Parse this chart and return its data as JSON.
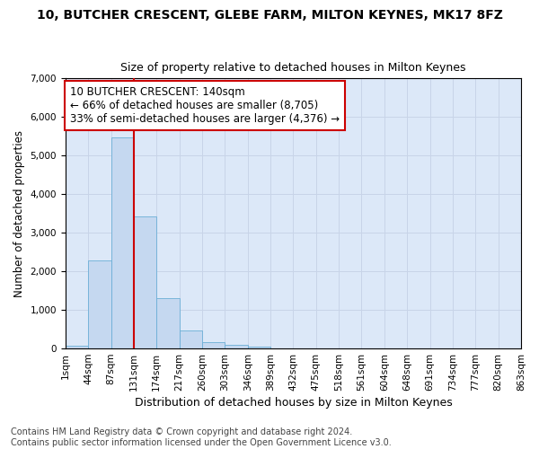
{
  "title": "10, BUTCHER CRESCENT, GLEBE FARM, MILTON KEYNES, MK17 8FZ",
  "subtitle": "Size of property relative to detached houses in Milton Keynes",
  "xlabel": "Distribution of detached houses by size in Milton Keynes",
  "ylabel": "Number of detached properties",
  "bar_values": [
    80,
    2280,
    5480,
    3430,
    1310,
    470,
    155,
    85,
    55,
    0,
    0,
    0,
    0,
    0,
    0,
    0,
    0,
    0,
    0,
    0
  ],
  "bar_labels": [
    "1sqm",
    "44sqm",
    "87sqm",
    "131sqm",
    "174sqm",
    "217sqm",
    "260sqm",
    "303sqm",
    "346sqm",
    "389sqm",
    "432sqm",
    "475sqm",
    "518sqm",
    "561sqm",
    "604sqm",
    "648sqm",
    "691sqm",
    "734sqm",
    "777sqm",
    "820sqm",
    "863sqm"
  ],
  "bar_color": "#c5d8f0",
  "bar_edge_color": "#6baed6",
  "vline_color": "#cc0000",
  "annotation_text": "10 BUTCHER CRESCENT: 140sqm\n← 66% of detached houses are smaller (8,705)\n33% of semi-detached houses are larger (4,376) →",
  "annotation_box_color": "#ffffff",
  "annotation_box_edge_color": "#cc0000",
  "ylim": [
    0,
    7000
  ],
  "yticks": [
    0,
    1000,
    2000,
    3000,
    4000,
    5000,
    6000,
    7000
  ],
  "grid_color": "#c8d4e8",
  "background_color": "#dce8f8",
  "footer_text": "Contains HM Land Registry data © Crown copyright and database right 2024.\nContains public sector information licensed under the Open Government Licence v3.0.",
  "title_fontsize": 10,
  "subtitle_fontsize": 9,
  "xlabel_fontsize": 9,
  "ylabel_fontsize": 8.5,
  "tick_fontsize": 7.5,
  "annotation_fontsize": 8.5,
  "footer_fontsize": 7
}
